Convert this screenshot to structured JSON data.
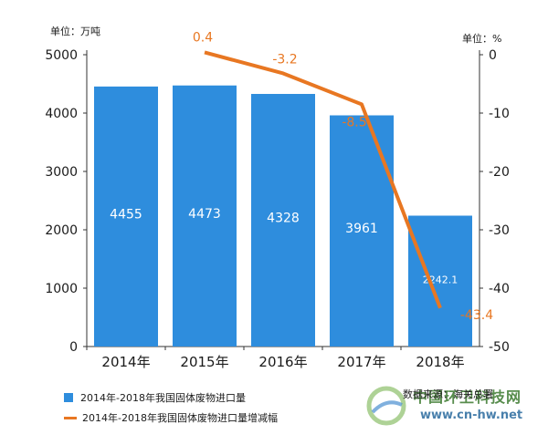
{
  "chart_data": {
    "type": "bar",
    "left_unit_label": "单位：万吨",
    "right_unit_label": "单位：%",
    "categories": [
      "2014年",
      "2015年",
      "2016年",
      "2017年",
      "2018年"
    ],
    "bar_series": {
      "name": "2014年-2018年我国固体废物进口量",
      "values": [
        4455,
        4473,
        4328,
        3961,
        2242.1
      ],
      "labels": [
        "4455",
        "4473",
        "4328",
        "3961",
        "2242.1"
      ],
      "color": "#2e8ddd"
    },
    "line_series": {
      "name": "2014年-2018年我国固体废物进口量增减幅",
      "x": [
        "2015年",
        "2016年",
        "2017年",
        "2018年"
      ],
      "values": [
        0.4,
        -3.2,
        -8.5,
        -43.4
      ],
      "labels": [
        "0.4",
        "-3.2",
        "-8.5",
        "-43.4"
      ],
      "color": "#e87722"
    },
    "y_left": {
      "range": [
        0,
        5000
      ],
      "ticks": [
        0,
        1000,
        2000,
        3000,
        4000,
        5000
      ]
    },
    "y_right": {
      "range": [
        -50,
        0
      ],
      "ticks": [
        0,
        -10,
        -20,
        -30,
        -40,
        -50
      ]
    },
    "grid": false,
    "legend_position": "bottom-left"
  },
  "source_text": "数据来源：海关总署",
  "watermark": {
    "title": "中国环卫科技网",
    "url": "www.cn-hw.net"
  }
}
